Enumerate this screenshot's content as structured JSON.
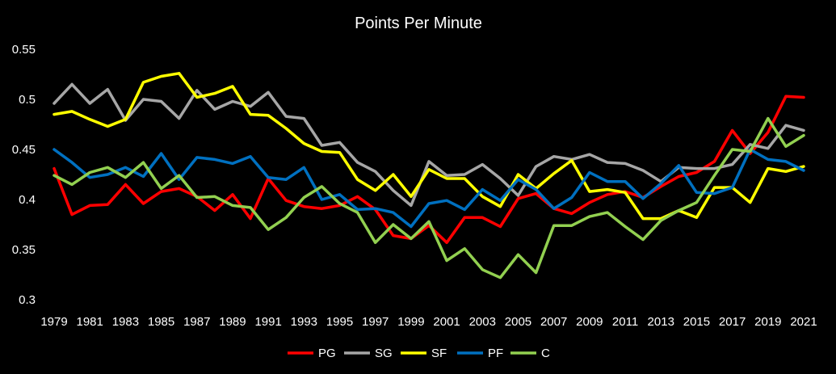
{
  "chart_data": {
    "type": "line",
    "title": "Points Per Minute",
    "xlabel": "",
    "ylabel": "",
    "ylim": [
      0.3,
      0.55
    ],
    "yticks": [
      "0.3",
      "0.35",
      "0.4",
      "0.45",
      "0.5",
      "0.55"
    ],
    "grid": false,
    "legend_position": "bottom",
    "x": [
      1979,
      1980,
      1981,
      1982,
      1983,
      1984,
      1985,
      1986,
      1987,
      1988,
      1989,
      1990,
      1991,
      1992,
      1993,
      1994,
      1995,
      1996,
      1997,
      1998,
      1999,
      2000,
      2001,
      2002,
      2003,
      2004,
      2005,
      2006,
      2007,
      2008,
      2009,
      2010,
      2011,
      2012,
      2013,
      2014,
      2015,
      2016,
      2017,
      2018,
      2019,
      2020,
      2021
    ],
    "xtick_labels": [
      "1979",
      "1981",
      "1983",
      "1985",
      "1987",
      "1989",
      "1991",
      "1993",
      "1995",
      "1997",
      "1999",
      "2001",
      "2003",
      "2005",
      "2007",
      "2009",
      "2011",
      "2013",
      "2015",
      "2017",
      "2019",
      "2021"
    ],
    "series": [
      {
        "name": "PG",
        "color": "#ff0000",
        "values": [
          0.431,
          0.385,
          0.394,
          0.395,
          0.415,
          0.396,
          0.408,
          0.411,
          0.403,
          0.389,
          0.405,
          0.381,
          0.421,
          0.399,
          0.393,
          0.391,
          0.394,
          0.403,
          0.39,
          0.364,
          0.361,
          0.374,
          0.357,
          0.382,
          0.382,
          0.373,
          0.401,
          0.406,
          0.391,
          0.386,
          0.397,
          0.405,
          0.408,
          0.402,
          0.413,
          0.423,
          0.427,
          0.438,
          0.469,
          0.446,
          0.467,
          0.503,
          0.502
        ]
      },
      {
        "name": "SG",
        "color": "#a6a6a6",
        "values": [
          0.496,
          0.515,
          0.496,
          0.51,
          0.479,
          0.5,
          0.498,
          0.481,
          0.509,
          0.49,
          0.498,
          0.493,
          0.507,
          0.483,
          0.481,
          0.454,
          0.457,
          0.437,
          0.428,
          0.409,
          0.394,
          0.438,
          0.424,
          0.425,
          0.435,
          0.421,
          0.404,
          0.433,
          0.443,
          0.44,
          0.445,
          0.437,
          0.436,
          0.429,
          0.418,
          0.432,
          0.431,
          0.431,
          0.435,
          0.455,
          0.451,
          0.474,
          0.469
        ]
      },
      {
        "name": "SF",
        "color": "#ffff00",
        "values": [
          0.485,
          0.488,
          0.48,
          0.473,
          0.48,
          0.517,
          0.523,
          0.526,
          0.502,
          0.506,
          0.513,
          0.485,
          0.484,
          0.471,
          0.456,
          0.448,
          0.447,
          0.42,
          0.409,
          0.425,
          0.403,
          0.43,
          0.421,
          0.421,
          0.403,
          0.393,
          0.425,
          0.411,
          0.426,
          0.439,
          0.408,
          0.41,
          0.407,
          0.381,
          0.381,
          0.389,
          0.382,
          0.412,
          0.412,
          0.397,
          0.431,
          0.428,
          0.433
        ]
      },
      {
        "name": "PF",
        "color": "#0070c0",
        "values": [
          0.45,
          0.437,
          0.422,
          0.425,
          0.432,
          0.423,
          0.446,
          0.42,
          0.442,
          0.44,
          0.436,
          0.443,
          0.422,
          0.42,
          0.432,
          0.4,
          0.405,
          0.39,
          0.391,
          0.387,
          0.373,
          0.396,
          0.399,
          0.39,
          0.41,
          0.399,
          0.42,
          0.41,
          0.391,
          0.402,
          0.427,
          0.418,
          0.418,
          0.401,
          0.416,
          0.434,
          0.407,
          0.406,
          0.412,
          0.45,
          0.44,
          0.438,
          0.429
        ]
      },
      {
        "name": "C",
        "color": "#92d050",
        "values": [
          0.424,
          0.415,
          0.427,
          0.432,
          0.422,
          0.437,
          0.411,
          0.424,
          0.402,
          0.403,
          0.394,
          0.392,
          0.37,
          0.382,
          0.402,
          0.413,
          0.396,
          0.387,
          0.357,
          0.375,
          0.361,
          0.378,
          0.339,
          0.351,
          0.33,
          0.322,
          0.345,
          0.327,
          0.374,
          0.374,
          0.383,
          0.387,
          0.373,
          0.36,
          0.379,
          0.389,
          0.397,
          0.424,
          0.45,
          0.448,
          0.481,
          0.453,
          0.464
        ]
      }
    ]
  }
}
